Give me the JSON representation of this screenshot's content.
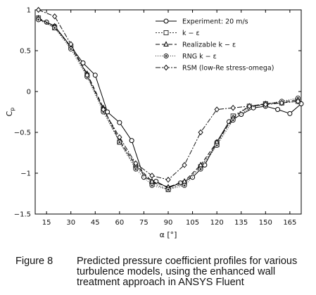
{
  "chart_data": {
    "type": "line",
    "xlabel": "α [°]",
    "ylabel": "C",
    "ylabel_sub": "p",
    "xlim": [
      8,
      172
    ],
    "ylim": [
      -1.5,
      1
    ],
    "xticks": [
      15,
      30,
      45,
      60,
      75,
      90,
      105,
      120,
      135,
      150,
      165
    ],
    "yticks": [
      1,
      0.5,
      0,
      -0.5,
      -1,
      -1.5
    ],
    "ytick_labels": [
      "1",
      "0.5",
      "0",
      "−0.5",
      "−1",
      "−1.5"
    ],
    "legend_position": "top-right",
    "series": [
      {
        "name": "Experiment: 20 m/s",
        "marker": "circle",
        "dash": "solid",
        "color": "#000000",
        "x": [
          10,
          15,
          20,
          30,
          37.5,
          45,
          52.5,
          60,
          67.5,
          75,
          82.5,
          90,
          97.5,
          105,
          112.5,
          120,
          127.5,
          135,
          142.5,
          150,
          157.5,
          165,
          172
        ],
        "y": [
          0.88,
          0.85,
          0.8,
          0.55,
          0.35,
          0.2,
          -0.25,
          -0.38,
          -0.6,
          -1.05,
          -1.1,
          -1.18,
          -1.12,
          -1.05,
          -0.9,
          -0.62,
          -0.37,
          -0.28,
          -0.2,
          -0.18,
          -0.22,
          -0.27,
          -0.15
        ]
      },
      {
        "name": "k − ε",
        "marker": "square",
        "dash": "2,2",
        "color": "#333333",
        "x": [
          10,
          20,
          30,
          40,
          50,
          60,
          70,
          80,
          90,
          100,
          110,
          120,
          130,
          140,
          150,
          160,
          170
        ],
        "y": [
          0.9,
          0.78,
          0.55,
          0.2,
          -0.22,
          -0.62,
          -0.92,
          -1.12,
          -1.2,
          -1.12,
          -0.92,
          -0.65,
          -0.3,
          -0.18,
          -0.15,
          -0.14,
          -0.12
        ]
      },
      {
        "name": "Realizable k − ε",
        "marker": "triangle",
        "dash": "6,3",
        "color": "#000000",
        "x": [
          10,
          20,
          30,
          40,
          50,
          60,
          70,
          80,
          90,
          100,
          110,
          120,
          130,
          140,
          150,
          160,
          170
        ],
        "y": [
          0.9,
          0.8,
          0.54,
          0.22,
          -0.2,
          -0.6,
          -0.9,
          -1.1,
          -1.17,
          -1.1,
          -0.9,
          -0.62,
          -0.32,
          -0.18,
          -0.15,
          -0.13,
          -0.1
        ]
      },
      {
        "name": "RNG k − ε",
        "marker": "dot",
        "dash": "1,2",
        "color": "#222222",
        "x": [
          10,
          20,
          30,
          40,
          50,
          60,
          70,
          80,
          90,
          100,
          110,
          120,
          130,
          140,
          150,
          160,
          170
        ],
        "y": [
          0.88,
          0.78,
          0.52,
          0.18,
          -0.25,
          -0.62,
          -0.95,
          -1.15,
          -1.2,
          -1.15,
          -0.95,
          -0.66,
          -0.35,
          -0.2,
          -0.15,
          -0.12,
          -0.08
        ]
      },
      {
        "name": "RSM (low-Re stress-omega)",
        "marker": "diamond",
        "dash": "7,2,2,2",
        "color": "#111111",
        "x": [
          10,
          20,
          30,
          40,
          50,
          60,
          70,
          80,
          90,
          100,
          110,
          120,
          130,
          140,
          150,
          160,
          170
        ],
        "y": [
          1.0,
          0.92,
          0.58,
          0.2,
          -0.22,
          -0.56,
          -0.88,
          -1.03,
          -1.08,
          -0.9,
          -0.5,
          -0.22,
          -0.2,
          -0.18,
          -0.16,
          -0.14,
          -0.12
        ]
      }
    ]
  },
  "caption": {
    "number": "Figure 8",
    "text": "Predicted pressure coefficient profiles for various turbulence models, using the enhanced wall treatment approach in ANSYS Fluent"
  }
}
